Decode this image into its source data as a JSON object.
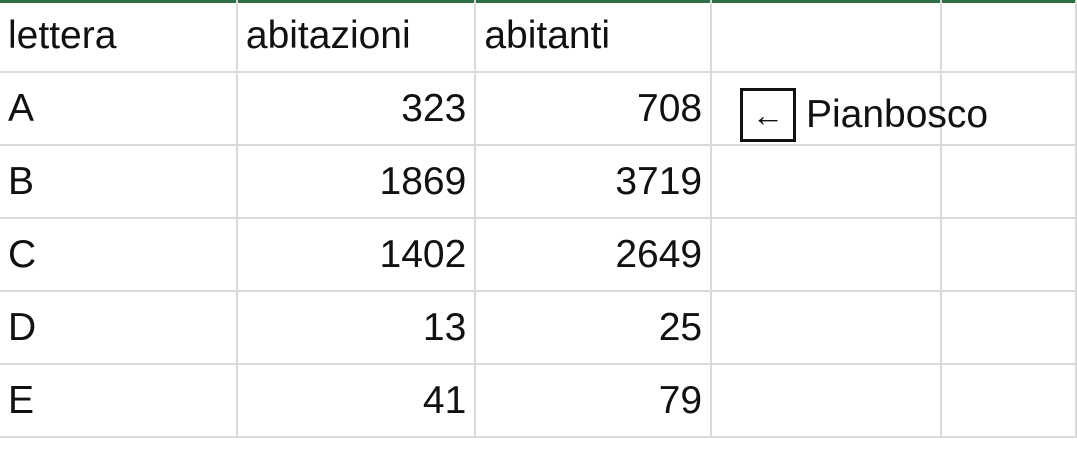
{
  "accent_color": "#2f6f48",
  "headers": [
    "lettera",
    "abitazioni",
    "abitanti",
    "",
    ""
  ],
  "rows": [
    [
      "A",
      "323",
      "708"
    ],
    [
      "B",
      "1869",
      "3719"
    ],
    [
      "C",
      "1402",
      "2649"
    ],
    [
      "D",
      "13",
      "25"
    ],
    [
      "E",
      "41",
      "79"
    ]
  ],
  "note": {
    "icon": "left-arrow-box-icon",
    "arrow": "←",
    "label": "Pianbosco"
  }
}
